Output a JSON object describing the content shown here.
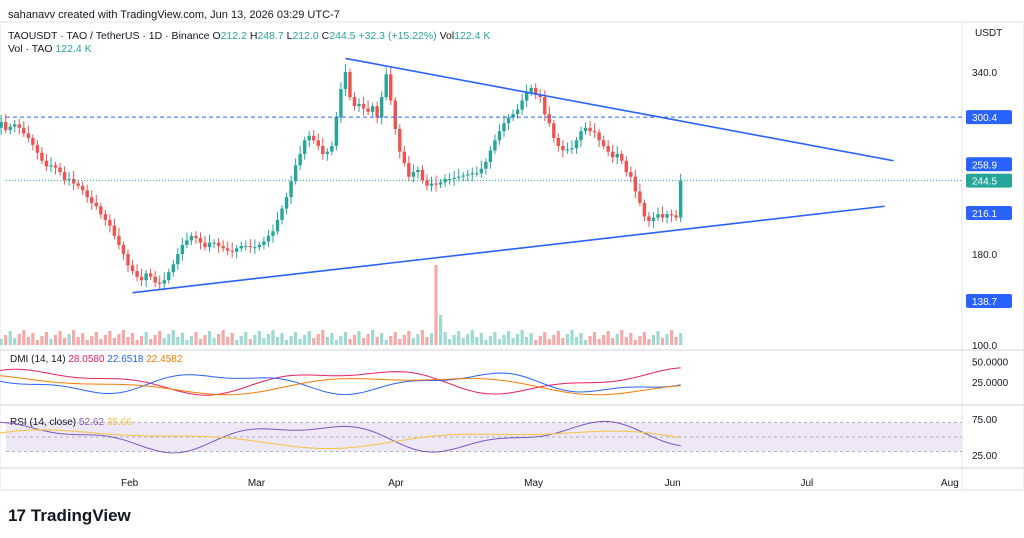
{
  "header": {
    "attribution": "sahanavv created with TradingView.com, Jun 13, 2026 03:29 UTC-7",
    "symbol": "TAOUSDT · TAO / TetherUS · 1D · Binance",
    "ohlc": {
      "o_label": "O",
      "o": "212.2",
      "h_label": "H",
      "h": "248.7",
      "l_label": "L",
      "l": "212.0",
      "c_label": "C",
      "c": "244.5",
      "change": "+32.3 (+15.22%)",
      "vol_label": "Vol",
      "vol": "122.4 K"
    },
    "vol_legend": {
      "label": "Vol · TAO",
      "value": "122.4 K"
    }
  },
  "colors": {
    "up": "#26a69a",
    "down": "#ef5350",
    "vol_up": "#9ed9d3",
    "vol_down": "#f7a9a7",
    "trendline": "#2962ff",
    "level_dashed": "#2962ff",
    "price_dotted": "#26a69a",
    "dmi_plus": "#e91e63",
    "dmi_minus": "#2962ff",
    "adx": "#f57c00",
    "rsi": "#7e57c2",
    "rsi_ma": "#f6c343",
    "rsi_band": "#ede7f6"
  },
  "chart_data": {
    "type": "candlestick",
    "currency": "USDT",
    "y_ticks": [
      340.0,
      300.4,
      258.9,
      244.5,
      216.1,
      180.0,
      138.7,
      100.0
    ],
    "y_tick_labels": [
      "340.0",
      "300.4",
      "258.9",
      "244.5",
      "216.1",
      "180.0",
      "138.7",
      "100.0"
    ],
    "y_tick_badges": {
      "300.4": "#2962ff",
      "258.9": "#2962ff",
      "244.5": "#26a69a",
      "216.1": "#2962ff",
      "138.7": "#2962ff"
    },
    "x_ticks": [
      "Feb",
      "Mar",
      "Apr",
      "May",
      "Jun",
      "Jul",
      "Aug"
    ],
    "resistance_level": 300.4,
    "current_price": 244.5,
    "trendlines": [
      {
        "name": "upper",
        "points": [
          [
            "2026-03-21",
            352
          ],
          [
            "2026-07-20",
            262
          ]
        ]
      },
      {
        "name": "lower",
        "points": [
          [
            "2026-02-02",
            146
          ],
          [
            "2026-07-18",
            222
          ]
        ]
      }
    ],
    "closes": [
      290,
      293,
      291,
      296,
      289,
      292,
      294,
      291,
      286,
      282,
      276,
      269,
      262,
      257,
      258,
      256,
      252,
      245,
      246,
      242,
      240,
      236,
      230,
      225,
      222,
      215,
      210,
      205,
      196,
      188,
      180,
      170,
      165,
      160,
      157,
      163,
      160,
      155,
      154,
      157,
      164,
      171,
      180,
      188,
      192,
      196,
      194,
      190,
      186,
      190,
      190,
      187,
      185,
      183,
      182,
      185,
      187,
      187,
      186,
      186,
      188,
      191,
      196,
      200,
      210,
      220,
      230,
      244,
      258,
      268,
      280,
      284,
      280,
      275,
      268,
      270,
      275,
      300,
      325,
      340,
      318,
      310,
      312,
      308,
      305,
      310,
      300,
      318,
      338,
      315,
      290,
      270,
      260,
      248,
      252,
      254,
      245,
      240,
      242,
      241,
      243,
      246,
      246,
      247,
      248,
      249,
      250,
      251,
      251,
      255,
      261,
      271,
      280,
      288,
      295,
      300,
      303,
      307,
      315,
      322,
      326,
      320,
      318,
      303,
      295,
      282,
      275,
      271,
      272,
      273,
      280,
      288,
      291,
      288,
      287,
      280,
      275,
      270,
      265,
      268,
      262,
      252,
      248,
      235,
      225,
      213,
      209,
      212,
      215,
      212,
      215,
      214,
      212,
      244.5
    ],
    "volume": {
      "last": "122.4 K",
      "spike_date": "Apr",
      "bars_relative": "small, with spike near Apr"
    },
    "indicators": {
      "dmi": {
        "label": "DMI (14, 14)",
        "plus": "28.0580",
        "minus": "22.6518",
        "adx": "22.4582",
        "y_ticks": [
          "50.0000",
          "25.0000"
        ]
      },
      "rsi": {
        "label": "RSI (14, close)",
        "value": "52.62",
        "ma": "35.66",
        "y_ticks": [
          "75.00",
          "25.00"
        ],
        "upper": 70,
        "lower": 30
      }
    }
  },
  "footer": {
    "brand": "TradingView",
    "logo": "17"
  }
}
